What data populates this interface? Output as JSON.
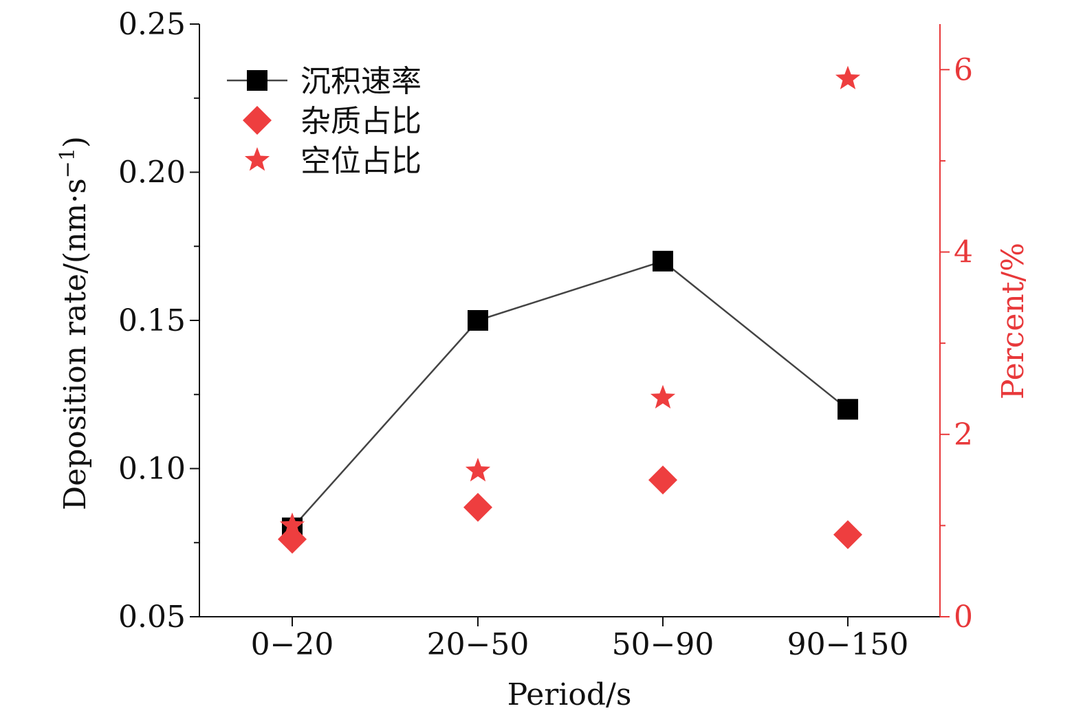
{
  "chart_data": {
    "type": "line",
    "title": "",
    "categories": [
      "0−20",
      "20−50",
      "50−90",
      "90−150"
    ],
    "xlabel": "Period/s",
    "ylabel": "Deposition rate/(nm·s",
    "ylabel_sup": "−1",
    "ylabel_close": ")",
    "y2label": "Percent/%",
    "ylim": [
      0.05,
      0.25
    ],
    "y2lim": [
      0,
      6.5
    ],
    "yticks": [
      "0.05",
      "0.10",
      "0.15",
      "0.20",
      "0.25"
    ],
    "y2ticks": [
      "0",
      "2",
      "4",
      "6"
    ],
    "legend_position": "top-left",
    "series": [
      {
        "name": "沉积速率",
        "axis": "left",
        "marker": "square",
        "line": true,
        "color": "#000000",
        "values": [
          0.08,
          0.15,
          0.17,
          0.12
        ]
      },
      {
        "name": "杂质占比",
        "axis": "right",
        "marker": "diamond",
        "line": false,
        "color": "#ee3e3f",
        "values": [
          0.85,
          1.2,
          1.5,
          0.9
        ]
      },
      {
        "name": "空位占比",
        "axis": "right",
        "marker": "star",
        "line": false,
        "color": "#ee3e3f",
        "values": [
          1.0,
          1.6,
          2.4,
          5.9
        ]
      }
    ]
  },
  "colors": {
    "axis_left": "#111111",
    "axis_right": "#e8383a",
    "line": "#444444"
  }
}
